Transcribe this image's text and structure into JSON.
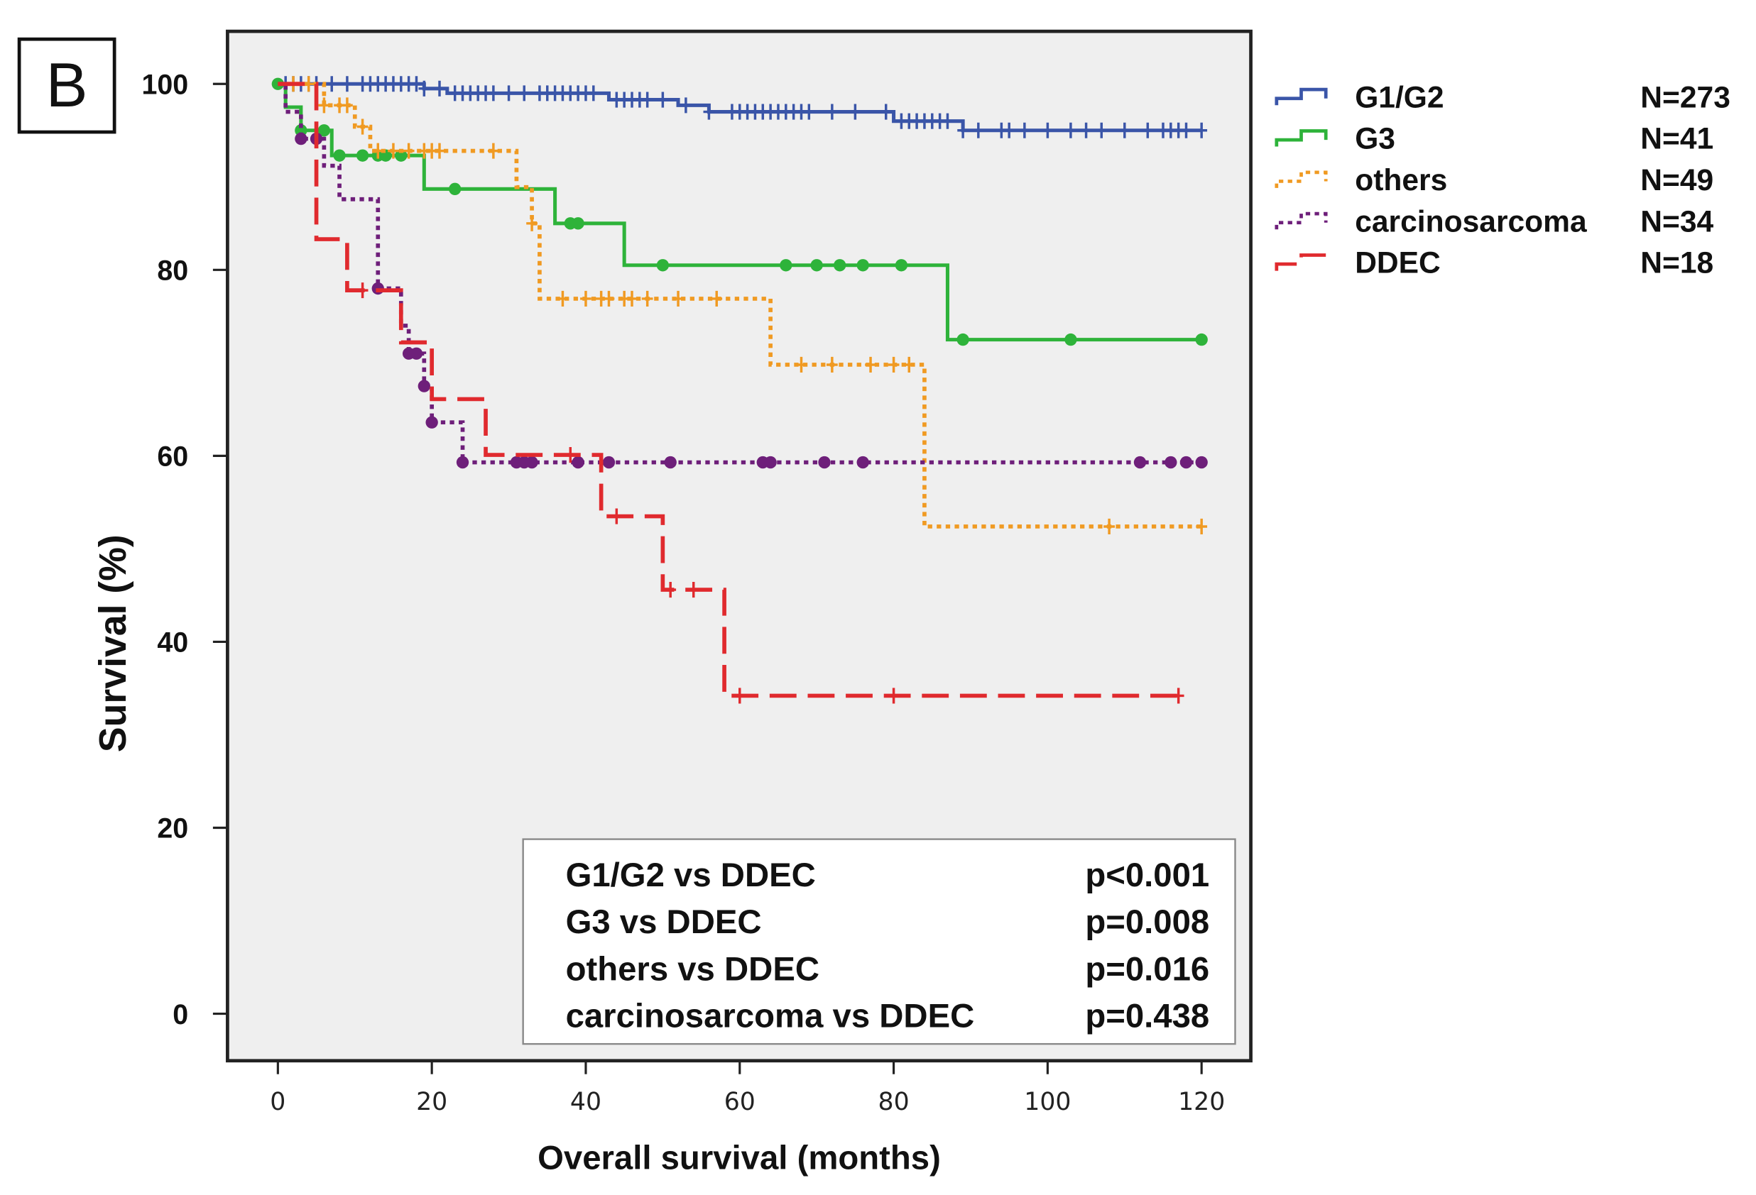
{
  "panel_label": "B",
  "chart_data": {
    "type": "line",
    "subtype": "kaplan-meier",
    "xlabel": "Overall survival (months)",
    "ylabel": "Survival (%)",
    "xlim": [
      0,
      120
    ],
    "ylim": [
      0,
      100
    ],
    "xticks": [
      0,
      20,
      40,
      60,
      80,
      100,
      120
    ],
    "yticks": [
      0,
      20,
      40,
      60,
      80,
      100
    ],
    "grid": false,
    "background": "#efefef",
    "legend_position": "right",
    "series": [
      {
        "name": "G1/G2",
        "n_label": "N=273",
        "color": "#3a55a8",
        "style": "solid",
        "marker": "plus",
        "steps": [
          [
            0,
            100
          ],
          [
            19,
            99.5
          ],
          [
            22,
            99
          ],
          [
            43,
            98.3
          ],
          [
            52,
            97.7
          ],
          [
            56,
            97
          ],
          [
            80,
            96
          ],
          [
            89,
            95
          ],
          [
            120,
            95
          ]
        ],
        "censored": [
          1,
          2,
          3,
          4,
          5,
          7,
          9,
          11,
          12,
          13,
          14,
          15,
          16,
          17,
          18,
          19,
          21,
          23,
          24,
          25,
          26,
          27,
          28,
          30,
          32,
          34,
          35,
          36,
          37,
          38,
          39,
          40,
          41,
          44,
          45,
          46,
          47,
          48,
          50,
          53,
          56,
          59,
          60,
          61,
          62,
          63,
          64,
          65,
          66,
          67,
          68,
          69,
          72,
          75,
          79,
          81,
          82,
          83,
          84,
          85,
          86,
          87,
          89,
          91,
          94,
          95,
          97,
          100,
          103,
          105,
          107,
          110,
          113,
          115,
          116,
          117,
          118,
          120
        ]
      },
      {
        "name": "G3",
        "n_label": "N=41",
        "color": "#2eb33a",
        "style": "solid",
        "marker": "dot",
        "steps": [
          [
            0,
            100
          ],
          [
            1,
            97.5
          ],
          [
            3,
            95
          ],
          [
            7,
            92.3
          ],
          [
            19,
            88.7
          ],
          [
            36,
            85
          ],
          [
            45,
            80.5
          ],
          [
            87,
            72.5
          ],
          [
            120,
            72.5
          ]
        ],
        "censored": [
          0,
          3,
          6,
          8,
          11,
          13,
          14,
          16,
          23,
          38,
          39,
          50,
          66,
          70,
          73,
          76,
          81,
          89,
          103,
          120
        ]
      },
      {
        "name": "others",
        "n_label": "N=49",
        "color": "#f09a22",
        "style": "dotted",
        "marker": "plus",
        "steps": [
          [
            0,
            100
          ],
          [
            6,
            97.7
          ],
          [
            10,
            95.4
          ],
          [
            12,
            92.8
          ],
          [
            31,
            88.9
          ],
          [
            33,
            85
          ],
          [
            34,
            76.9
          ],
          [
            64,
            69.8
          ],
          [
            84,
            52.4
          ],
          [
            120,
            52.4
          ]
        ],
        "censored": [
          2,
          4,
          6,
          8,
          9,
          11,
          13,
          15,
          17,
          19,
          20,
          21,
          28,
          33,
          37,
          40,
          42,
          43,
          45,
          46,
          48,
          52,
          57,
          68,
          72,
          77,
          80,
          82,
          108,
          120
        ]
      },
      {
        "name": "carcinosarcoma",
        "n_label": "N=34",
        "color": "#6e1f7a",
        "style": "dotted",
        "marker": "dot",
        "steps": [
          [
            0,
            100
          ],
          [
            1,
            97
          ],
          [
            3,
            94.1
          ],
          [
            6,
            91.2
          ],
          [
            8,
            87.6
          ],
          [
            13,
            78
          ],
          [
            16,
            74
          ],
          [
            17,
            71
          ],
          [
            19,
            67.5
          ],
          [
            20,
            63.6
          ],
          [
            24,
            59.3
          ],
          [
            120,
            59.3
          ]
        ],
        "censored": [
          3,
          5,
          13,
          17,
          18,
          19,
          20,
          24,
          31,
          32,
          33,
          39,
          43,
          51,
          63,
          64,
          71,
          76,
          112,
          116,
          118,
          120
        ]
      },
      {
        "name": "DDEC",
        "n_label": "N=18",
        "color": "#e02a2e",
        "style": "dashed",
        "marker": "plus",
        "steps": [
          [
            0,
            100
          ],
          [
            5,
            83.3
          ],
          [
            9,
            77.8
          ],
          [
            16,
            72.2
          ],
          [
            20,
            66.1
          ],
          [
            27,
            60.1
          ],
          [
            42,
            53.5
          ],
          [
            50,
            45.6
          ],
          [
            58,
            34.2
          ],
          [
            117,
            34.2
          ]
        ],
        "censored": [
          11,
          38,
          44,
          51,
          54,
          60,
          80,
          117
        ]
      }
    ],
    "annotations": [
      {
        "comparison": "G1/G2 vs DDEC",
        "p": "p<0.001"
      },
      {
        "comparison": "G3 vs DDEC",
        "p": "p=0.008"
      },
      {
        "comparison": "others vs DDEC",
        "p": "p=0.016"
      },
      {
        "comparison": "carcinosarcoma vs DDEC",
        "p": "p=0.438"
      }
    ]
  }
}
